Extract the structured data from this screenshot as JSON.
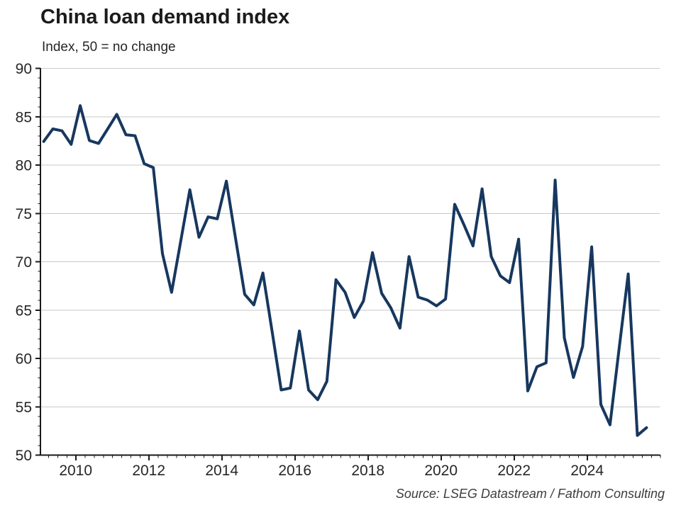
{
  "title": "China loan demand index",
  "subtitle": "Index, 50 = no change",
  "source": "Source: LSEG Datastream / Fathom Consulting",
  "chart_data": {
    "type": "line",
    "title": "China loan demand index",
    "subtitle": "Index, 50 = no change",
    "source": "Source: LSEG Datastream / Fathom Consulting",
    "frequency": "quarterly",
    "x_start": "2009 Q1",
    "x_end": "2025 Q3",
    "x_start_decimal_year": 2009.125,
    "x_step_years": 0.25,
    "xlim": [
      2009.03,
      2026.0
    ],
    "ylim": [
      50,
      90
    ],
    "yticks": [
      50,
      55,
      60,
      65,
      70,
      75,
      80,
      85,
      90
    ],
    "xtick_labels": [
      2010,
      2012,
      2014,
      2016,
      2018,
      2020,
      2022,
      2024
    ],
    "grid": "horizontal-only",
    "legend": "none",
    "series": [
      {
        "name": "China loan demand index",
        "values": [
          82.4,
          83.7,
          83.5,
          82.1,
          86.1,
          82.5,
          82.2,
          83.7,
          85.2,
          83.1,
          83.0,
          80.1,
          79.7,
          70.8,
          66.8,
          72.1,
          77.4,
          72.5,
          74.6,
          74.4,
          78.3,
          72.4,
          66.6,
          65.5,
          68.8,
          62.8,
          56.7,
          56.9,
          62.8,
          56.7,
          55.7,
          57.6,
          68.1,
          66.8,
          64.2,
          65.9,
          70.9,
          66.7,
          65.2,
          63.1,
          70.5,
          66.3,
          66.0,
          65.4,
          66.1,
          75.9,
          73.8,
          71.6,
          77.5,
          70.5,
          68.5,
          67.8,
          72.3,
          56.6,
          59.1,
          59.5,
          78.4,
          62.1,
          58.0,
          61.2,
          71.5,
          55.2,
          53.1,
          61.0,
          68.7,
          52.0,
          52.8
        ]
      }
    ],
    "colors": {
      "line": "#17375e",
      "grid": "#c9c9c9",
      "axis": "#1a1a1a",
      "tick_text": "#262626"
    }
  }
}
